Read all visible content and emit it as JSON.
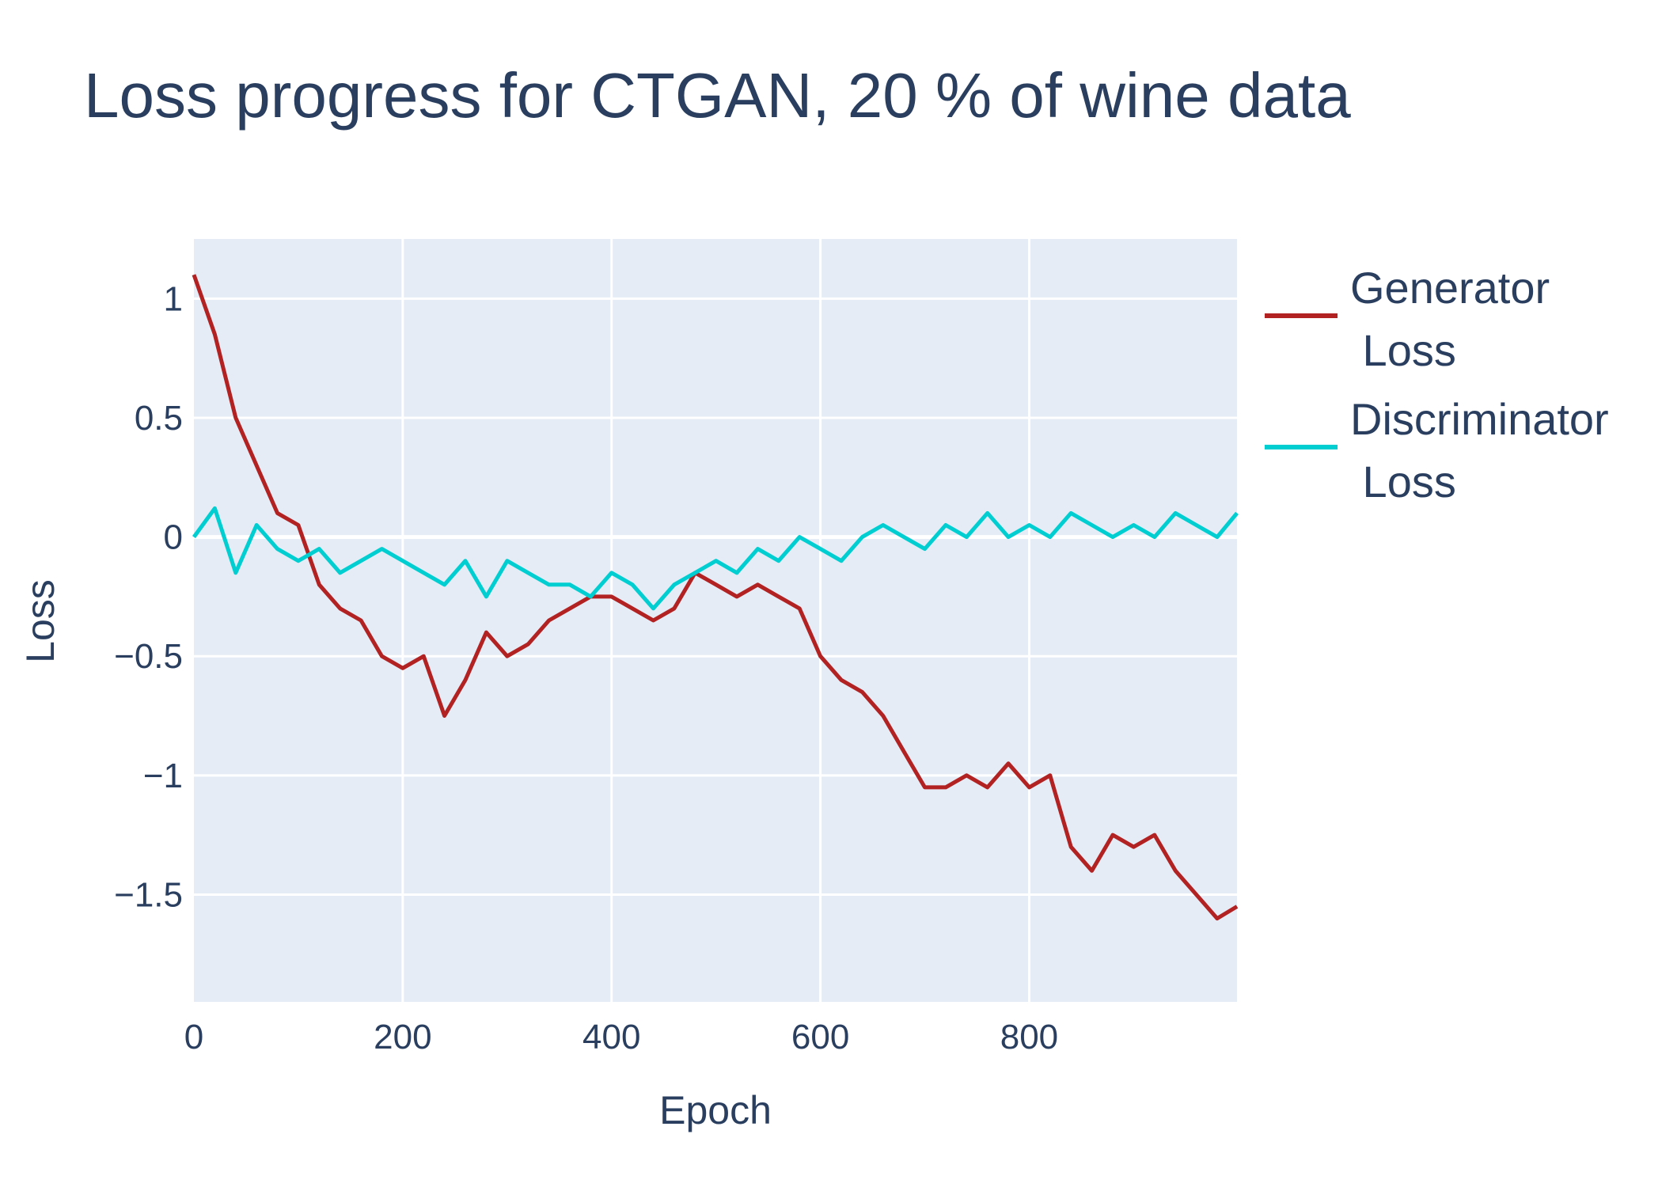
{
  "chart_data": {
    "type": "line",
    "title": "Loss progress for CTGAN, 20 % of wine data",
    "xlabel": "Epoch",
    "ylabel": "Loss",
    "xlim": [
      0,
      999
    ],
    "ylim": [
      -1.95,
      1.25
    ],
    "x_ticks": [
      0,
      200,
      400,
      600,
      800
    ],
    "x_tick_labels": [
      "0",
      "200",
      "400",
      "600",
      "800"
    ],
    "y_ticks": [
      1,
      0.5,
      0,
      -0.5,
      -1,
      -1.5
    ],
    "y_tick_labels": [
      "1",
      "0.5",
      "0",
      "−0.5",
      "−1",
      "−1.5"
    ],
    "grid": true,
    "plot_bgcolor": "#e5ecf6",
    "legend_position": "right",
    "series": [
      {
        "name_lines": [
          "Generator",
          " Loss"
        ],
        "color": "#b22222",
        "x": [
          0,
          20,
          40,
          60,
          80,
          100,
          120,
          140,
          160,
          180,
          200,
          220,
          240,
          260,
          280,
          300,
          320,
          340,
          360,
          380,
          400,
          420,
          440,
          460,
          480,
          500,
          520,
          540,
          560,
          580,
          600,
          620,
          640,
          660,
          680,
          700,
          720,
          740,
          760,
          780,
          800,
          820,
          840,
          860,
          880,
          900,
          920,
          940,
          960,
          980,
          999
        ],
        "y": [
          1.1,
          0.85,
          0.5,
          0.3,
          0.1,
          0.05,
          -0.2,
          -0.3,
          -0.35,
          -0.5,
          -0.55,
          -0.5,
          -0.75,
          -0.6,
          -0.4,
          -0.5,
          -0.45,
          -0.35,
          -0.3,
          -0.25,
          -0.25,
          -0.3,
          -0.35,
          -0.3,
          -0.15,
          -0.2,
          -0.25,
          -0.2,
          -0.25,
          -0.3,
          -0.5,
          -0.6,
          -0.65,
          -0.75,
          -0.9,
          -1.05,
          -1.05,
          -1.0,
          -1.05,
          -0.95,
          -1.05,
          -1.0,
          -1.3,
          -1.4,
          -1.25,
          -1.3,
          -1.25,
          -1.4,
          -1.5,
          -1.6,
          -1.55
        ]
      },
      {
        "name_lines": [
          "Discriminator",
          " Loss"
        ],
        "color": "#00ced1",
        "x": [
          0,
          20,
          40,
          60,
          80,
          100,
          120,
          140,
          160,
          180,
          200,
          220,
          240,
          260,
          280,
          300,
          320,
          340,
          360,
          380,
          400,
          420,
          440,
          460,
          480,
          500,
          520,
          540,
          560,
          580,
          600,
          620,
          640,
          660,
          680,
          700,
          720,
          740,
          760,
          780,
          800,
          820,
          840,
          860,
          880,
          900,
          920,
          940,
          960,
          980,
          999
        ],
        "y": [
          0.0,
          0.12,
          -0.15,
          0.05,
          -0.05,
          -0.1,
          -0.05,
          -0.15,
          -0.1,
          -0.05,
          -0.1,
          -0.15,
          -0.2,
          -0.1,
          -0.25,
          -0.1,
          -0.15,
          -0.2,
          -0.2,
          -0.25,
          -0.15,
          -0.2,
          -0.3,
          -0.2,
          -0.15,
          -0.1,
          -0.15,
          -0.05,
          -0.1,
          0.0,
          -0.05,
          -0.1,
          0.0,
          0.05,
          0.0,
          -0.05,
          0.05,
          0.0,
          0.1,
          0.0,
          0.05,
          0.0,
          0.1,
          0.05,
          0.0,
          0.05,
          0.0,
          0.1,
          0.05,
          0.0,
          0.1
        ]
      }
    ]
  }
}
